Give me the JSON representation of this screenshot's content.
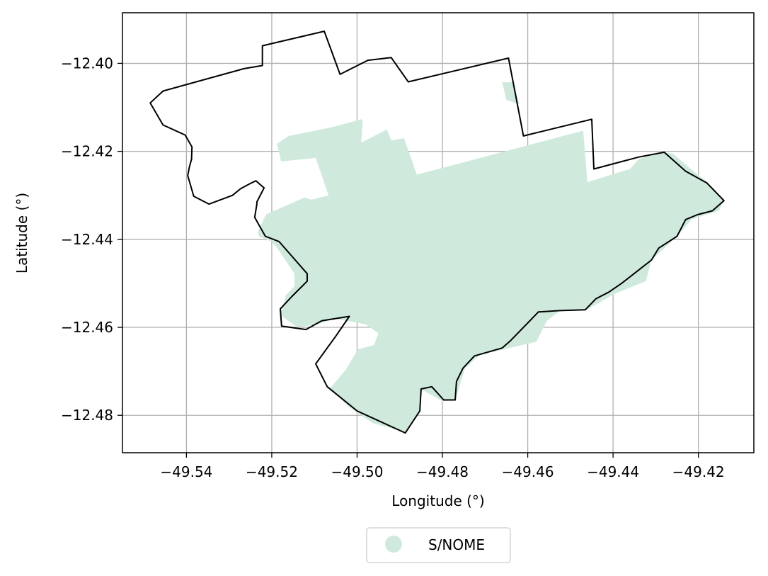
{
  "chart_data": {
    "type": "map",
    "xlabel": "Longitude (°)",
    "ylabel": "Latitude (°)",
    "xlim": [
      -49.555,
      -49.407
    ],
    "ylim": [
      -12.4885,
      -12.3885
    ],
    "xticks": [
      {
        "value": -49.54,
        "label": "−49.54"
      },
      {
        "value": -49.52,
        "label": "−49.52"
      },
      {
        "value": -49.5,
        "label": "−49.50"
      },
      {
        "value": -49.48,
        "label": "−49.48"
      },
      {
        "value": -49.46,
        "label": "−49.46"
      },
      {
        "value": -49.44,
        "label": "−49.44"
      },
      {
        "value": -49.42,
        "label": "−49.42"
      }
    ],
    "yticks": [
      {
        "value": -12.4,
        "label": "−12.40"
      },
      {
        "value": -12.42,
        "label": "−12.42"
      },
      {
        "value": -12.44,
        "label": "−12.44"
      },
      {
        "value": -12.46,
        "label": "−12.46"
      },
      {
        "value": -12.48,
        "label": "−12.48"
      }
    ],
    "grid": true,
    "legend": {
      "placement": "bottom-center outside",
      "entries": [
        {
          "label": "S/NOME",
          "color": "#cfeadd",
          "marker": "circle"
        }
      ]
    },
    "colors": {
      "fill": "#cfeadd",
      "boundary": "#000000",
      "grid": "#b0b0b0"
    },
    "layers": [
      {
        "name": "S/NOME",
        "kind": "filled-area",
        "rings": [
          [
            [
              -49.5188,
              -12.4183
            ],
            [
              -49.5178,
              -12.4223
            ],
            [
              -49.5097,
              -12.4215
            ],
            [
              -49.5067,
              -12.43
            ],
            [
              -49.5107,
              -12.431
            ],
            [
              -49.5123,
              -12.4305
            ],
            [
              -49.5213,
              -12.4343
            ],
            [
              -49.5233,
              -12.4383
            ],
            [
              -49.523,
              -12.4393
            ],
            [
              -49.52,
              -12.4405
            ],
            [
              -49.518,
              -12.443
            ],
            [
              -49.5147,
              -12.4478
            ],
            [
              -49.5147,
              -12.4507
            ],
            [
              -49.5167,
              -12.4527
            ],
            [
              -49.518,
              -12.4572
            ],
            [
              -49.514,
              -12.46
            ],
            [
              -49.5093,
              -12.4593
            ],
            [
              -49.5053,
              -12.458
            ],
            [
              -49.498,
              -12.4593
            ],
            [
              -49.495,
              -12.4613
            ],
            [
              -49.496,
              -12.464
            ],
            [
              -49.4998,
              -12.465
            ],
            [
              -49.5027,
              -12.4697
            ],
            [
              -49.5063,
              -12.4738
            ],
            [
              -49.5023,
              -12.4778
            ],
            [
              -49.4963,
              -12.4818
            ],
            [
              -49.4887,
              -12.4838
            ],
            [
              -49.4857,
              -12.48
            ],
            [
              -49.4847,
              -12.4742
            ],
            [
              -49.48,
              -12.4768
            ],
            [
              -49.477,
              -12.4765
            ],
            [
              -49.4747,
              -12.4693
            ],
            [
              -49.4713,
              -12.4663
            ],
            [
              -49.4647,
              -12.4648
            ],
            [
              -49.458,
              -12.4633
            ],
            [
              -49.4555,
              -12.4585
            ],
            [
              -49.4525,
              -12.4563
            ],
            [
              -49.4465,
              -12.4562
            ],
            [
              -49.4395,
              -12.4523
            ],
            [
              -49.4323,
              -12.4495
            ],
            [
              -49.431,
              -12.4447
            ],
            [
              -49.425,
              -12.4393
            ],
            [
              -49.4215,
              -12.4354
            ],
            [
              -49.4152,
              -12.4335
            ],
            [
              -49.414,
              -12.431
            ],
            [
              -49.418,
              -12.427
            ],
            [
              -49.421,
              -12.4246
            ],
            [
              -49.426,
              -12.4205
            ],
            [
              -49.4283,
              -12.4202
            ],
            [
              -49.431,
              -12.4208
            ],
            [
              -49.434,
              -12.4218
            ],
            [
              -49.436,
              -12.424
            ],
            [
              -49.446,
              -12.427
            ],
            [
              -49.447,
              -12.4153
            ],
            [
              -49.486,
              -12.4253
            ],
            [
              -49.489,
              -12.417
            ],
            [
              -49.492,
              -12.4175
            ],
            [
              -49.493,
              -12.415
            ],
            [
              -49.499,
              -12.418
            ],
            [
              -49.4987,
              -12.413
            ],
            [
              -49.499,
              -12.4127
            ],
            [
              -49.5058,
              -12.4145
            ],
            [
              -49.516,
              -12.4165
            ]
          ],
          [
            [
              -49.466,
              -12.4043
            ],
            [
              -49.4633,
              -12.4043
            ],
            [
              -49.462,
              -12.4093
            ],
            [
              -49.465,
              -12.4083
            ]
          ]
        ]
      },
      {
        "name": "boundary",
        "kind": "outline",
        "ring": [
          [
            -49.5077,
            -12.3927
          ],
          [
            -49.504,
            -12.4025
          ],
          [
            -49.4975,
            -12.3993
          ],
          [
            -49.492,
            -12.3987
          ],
          [
            -49.488,
            -12.4042
          ],
          [
            -49.4645,
            -12.3988
          ],
          [
            -49.461,
            -12.4165
          ],
          [
            -49.445,
            -12.4127
          ],
          [
            -49.4445,
            -12.424
          ],
          [
            -49.434,
            -12.4213
          ],
          [
            -49.428,
            -12.4202
          ],
          [
            -49.423,
            -12.4245
          ],
          [
            -49.418,
            -12.4272
          ],
          [
            -49.414,
            -12.4312
          ],
          [
            -49.4167,
            -12.4335
          ],
          [
            -49.4202,
            -12.4344
          ],
          [
            -49.423,
            -12.4355
          ],
          [
            -49.425,
            -12.4393
          ],
          [
            -49.4293,
            -12.442
          ],
          [
            -49.431,
            -12.4447
          ],
          [
            -49.4347,
            -12.4475
          ],
          [
            -49.438,
            -12.45
          ],
          [
            -49.441,
            -12.452
          ],
          [
            -49.444,
            -12.4535
          ],
          [
            -49.4465,
            -12.456
          ],
          [
            -49.4525,
            -12.4562
          ],
          [
            -49.4575,
            -12.4565
          ],
          [
            -49.46,
            -12.459
          ],
          [
            -49.464,
            -12.463
          ],
          [
            -49.466,
            -12.4647
          ],
          [
            -49.4725,
            -12.4665
          ],
          [
            -49.4752,
            -12.4693
          ],
          [
            -49.4767,
            -12.4723
          ],
          [
            -49.477,
            -12.4765
          ],
          [
            -49.4797,
            -12.4765
          ],
          [
            -49.4825,
            -12.4735
          ],
          [
            -49.485,
            -12.474
          ],
          [
            -49.4853,
            -12.479
          ],
          [
            -49.4887,
            -12.484
          ],
          [
            -49.5,
            -12.479
          ],
          [
            -49.507,
            -12.4735
          ],
          [
            -49.5097,
            -12.4683
          ],
          [
            -49.505,
            -12.462
          ],
          [
            -49.5018,
            -12.4575
          ],
          [
            -49.5083,
            -12.4585
          ],
          [
            -49.512,
            -12.4605
          ],
          [
            -49.5177,
            -12.4597
          ],
          [
            -49.518,
            -12.4558
          ],
          [
            -49.5153,
            -12.453
          ],
          [
            -49.5117,
            -12.4495
          ],
          [
            -49.5117,
            -12.4478
          ],
          [
            -49.5183,
            -12.4405
          ],
          [
            -49.5215,
            -12.4393
          ],
          [
            -49.524,
            -12.435
          ],
          [
            -49.5235,
            -12.432
          ],
          [
            -49.5235,
            -12.4315
          ],
          [
            -49.5218,
            -12.4283
          ],
          [
            -49.5237,
            -12.4267
          ],
          [
            -49.525,
            -12.4273
          ],
          [
            -49.5273,
            -12.4285
          ],
          [
            -49.5292,
            -12.43
          ],
          [
            -49.5347,
            -12.432
          ],
          [
            -49.5383,
            -12.4302
          ],
          [
            -49.5397,
            -12.4255
          ],
          [
            -49.5393,
            -12.4235
          ],
          [
            -49.5388,
            -12.4218
          ],
          [
            -49.5387,
            -12.419
          ],
          [
            -49.5403,
            -12.4163
          ],
          [
            -49.5455,
            -12.414
          ],
          [
            -49.5485,
            -12.409
          ],
          [
            -49.5455,
            -12.4063
          ],
          [
            -49.5265,
            -12.4012
          ],
          [
            -49.5222,
            -12.4005
          ],
          [
            -49.5222,
            -12.396
          ]
        ]
      }
    ]
  }
}
